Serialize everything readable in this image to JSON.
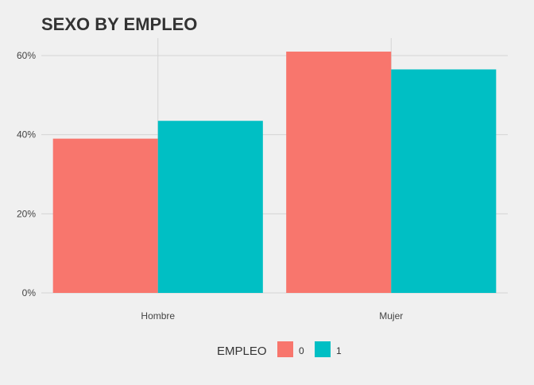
{
  "chart_data": {
    "type": "bar",
    "title": "SEXO BY EMPLEO",
    "xlabel": "",
    "ylabel": "",
    "categories": [
      "Hombre",
      "Mujer"
    ],
    "series": [
      {
        "name": "0",
        "color": "#F8766D",
        "values": [
          39,
          61
        ]
      },
      {
        "name": "1",
        "color": "#00BFC4",
        "values": [
          43.5,
          56.5
        ]
      }
    ],
    "ylim": [
      0,
      60
    ],
    "y_ticks": [
      0,
      20,
      40,
      60
    ],
    "y_tick_labels": [
      "0%",
      "20%",
      "40%",
      "60%"
    ],
    "legend": {
      "title": "EMPLEO",
      "position": "bottom"
    },
    "grid": true,
    "background": "#f0f0f0"
  }
}
